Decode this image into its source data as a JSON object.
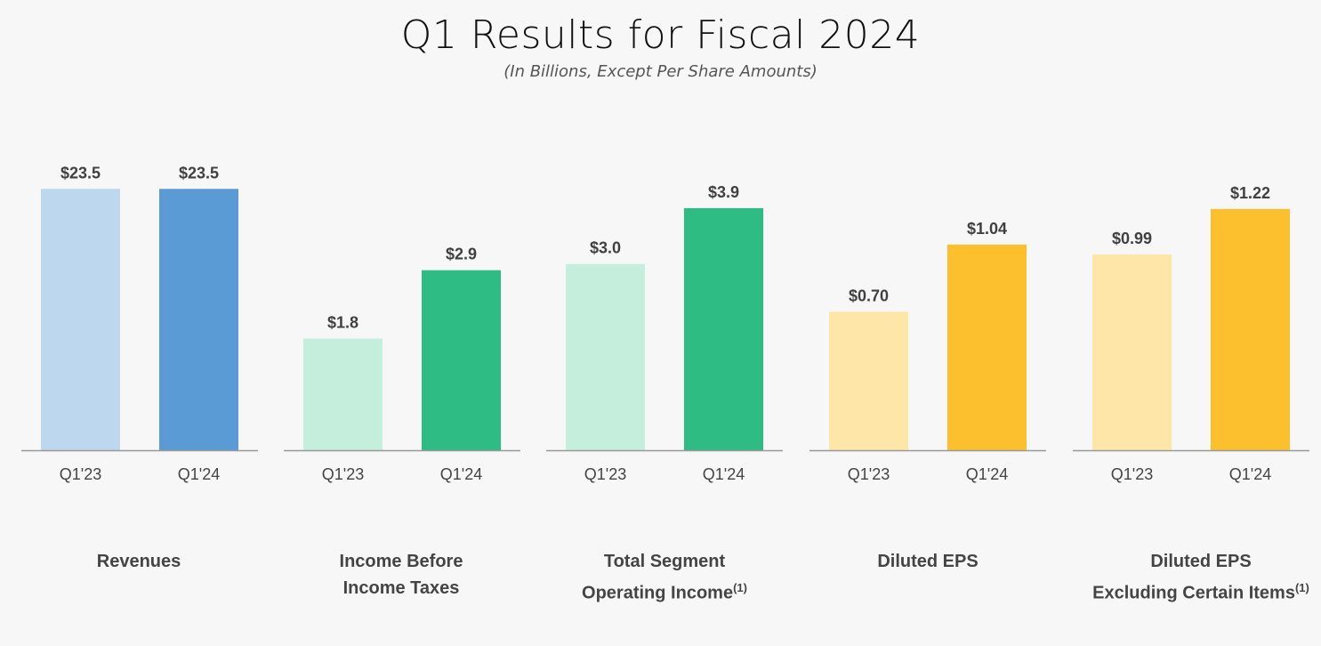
{
  "title": "Q1 Results for Fiscal 2024",
  "subtitle": "(In Billions, Except Per Share Amounts)",
  "colors": {
    "revenues": {
      "light": "#bdd7ee",
      "dark": "#5b9bd5"
    },
    "ibit": {
      "light": "#c6eedc",
      "dark": "#2fbb84"
    },
    "tsoi": {
      "light": "#c6eedc",
      "dark": "#2fbb84"
    },
    "eps": {
      "light": "#fde6a8",
      "dark": "#fcbf2e"
    },
    "eps_adj": {
      "light": "#fde6a8",
      "dark": "#fcbf2e"
    },
    "axis": "#999999",
    "value_text": "#404040",
    "tick_text": "#444444"
  },
  "labels": {
    "revenues": {
      "line1": "Revenues",
      "line2": "",
      "sup": ""
    },
    "ibit": {
      "line1": "Income Before",
      "line2": "Income Taxes",
      "sup": ""
    },
    "tsoi": {
      "line1": "Total Segment",
      "line2": "Operating Income",
      "sup": "(1)"
    },
    "eps": {
      "line1": "Diluted EPS",
      "line2": "",
      "sup": ""
    },
    "eps_adj": {
      "line1": "Diluted EPS",
      "line2": "Excluding Certain Items",
      "sup": "(1)"
    }
  },
  "chart_data": [
    {
      "type": "bar",
      "key": "revenues",
      "categories": [
        "Q1'23",
        "Q1'24"
      ],
      "values": [
        23.5,
        23.5
      ],
      "value_labels": [
        "$23.5",
        "$23.5"
      ],
      "ylim": [
        0,
        24
      ]
    },
    {
      "type": "bar",
      "key": "ibit",
      "categories": [
        "Q1'23",
        "Q1'24"
      ],
      "values": [
        1.8,
        2.9
      ],
      "value_labels": [
        "$1.8",
        "$2.9"
      ],
      "ylim": [
        0,
        4.3
      ]
    },
    {
      "type": "bar",
      "key": "tsoi",
      "categories": [
        "Q1'23",
        "Q1'24"
      ],
      "values": [
        3.0,
        3.9
      ],
      "value_labels": [
        "$3.0",
        "$3.9"
      ],
      "ylim": [
        0,
        4.3
      ]
    },
    {
      "type": "bar",
      "key": "eps",
      "categories": [
        "Q1'23",
        "Q1'24"
      ],
      "values": [
        0.7,
        1.04
      ],
      "value_labels": [
        "$0.70",
        "$1.04"
      ],
      "ylim": [
        0,
        1.35
      ]
    },
    {
      "type": "bar",
      "key": "eps_adj",
      "categories": [
        "Q1'23",
        "Q1'24"
      ],
      "values": [
        0.99,
        1.22
      ],
      "value_labels": [
        "$0.99",
        "$1.22"
      ],
      "ylim": [
        0,
        1.35
      ]
    }
  ]
}
